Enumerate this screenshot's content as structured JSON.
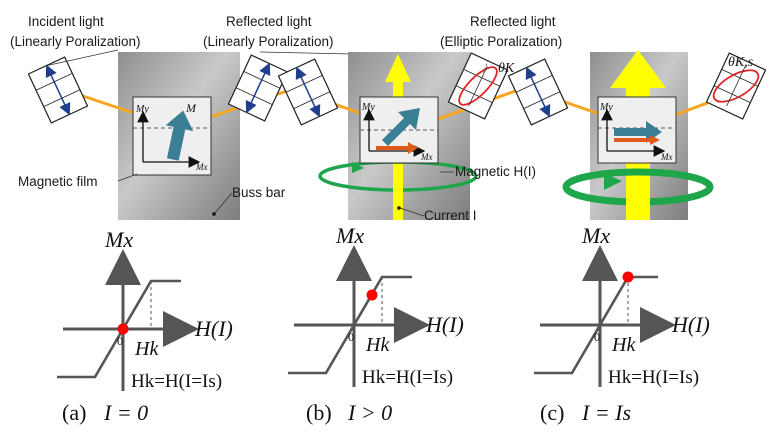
{
  "labels": {
    "incident_line1": "Incident light",
    "incident_line2": "(Linearly Poralization)",
    "reflected_a_line1": "Reflected light",
    "reflected_a_line2": "(Linearly Poralization)",
    "reflected_b_line1": "Reflected light",
    "reflected_b_line2": "(Elliptic Poralization)",
    "theta_k": "θK",
    "theta_ks": "θK,s",
    "magnetic_film": "Magnetic film",
    "buss_bar": "Buss bar",
    "magnetic_h": "Magnetic H(I)",
    "current": "Current I",
    "axis_my": "My",
    "axis_mx": "Mx",
    "vector_m": "M"
  },
  "panels": [
    {
      "id": "a",
      "caption_letter": "(a)",
      "caption_expr": "I = 0",
      "curve_marker": "origin"
    },
    {
      "id": "b",
      "caption_letter": "(b)",
      "caption_expr": "I > 0",
      "curve_marker": "mid"
    },
    {
      "id": "c",
      "caption_letter": "(c)",
      "caption_expr": "I = Is",
      "curve_marker": "knee"
    }
  ],
  "graph_labels": {
    "y_axis": "Mx",
    "x_axis": "H(I)",
    "zero": "0",
    "hk": "Hk",
    "relation": "Hk=H(I=Is)"
  },
  "colors": {
    "light_path": "#f5a623",
    "current_arrow": "#ffff00",
    "field_loop": "#1fa64a",
    "m_vector": "#3a7f93",
    "component_arrow": "#e05a1a",
    "ellipse": "#e0262a",
    "marker": "#ff0000",
    "polarizer_arrow": "#1f3f8a",
    "curve": "#555555"
  }
}
